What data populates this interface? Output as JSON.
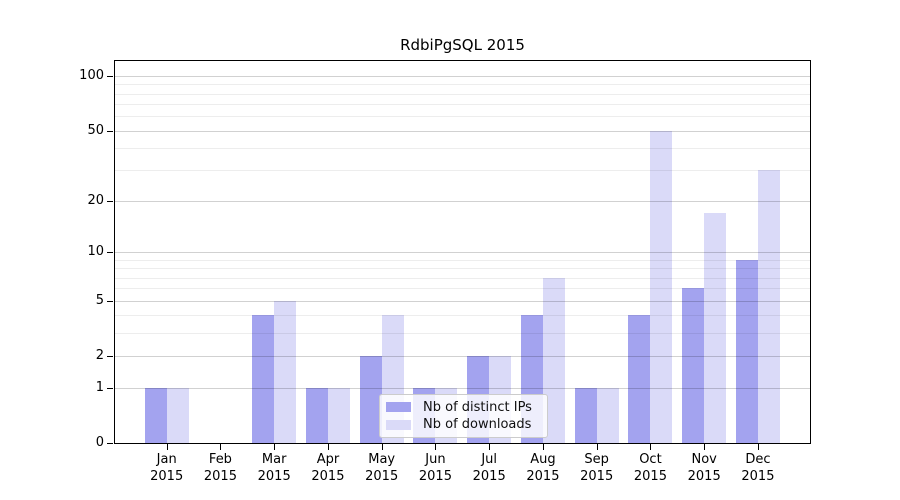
{
  "title": "RdbiPgSQL 2015",
  "chart_data": {
    "type": "bar",
    "categories": [
      "Jan",
      "Feb",
      "Mar",
      "Apr",
      "May",
      "Jun",
      "Jul",
      "Aug",
      "Sep",
      "Oct",
      "Nov",
      "Dec"
    ],
    "category_year": "2015",
    "series": [
      {
        "name": "Nb of distinct IPs",
        "color": "#a3a3ef",
        "values": [
          1,
          0,
          4,
          1,
          2,
          1,
          2,
          4,
          1,
          4,
          6,
          9
        ]
      },
      {
        "name": "Nb of downloads",
        "color": "#dadaf8",
        "values": [
          1,
          0,
          5,
          1,
          4,
          1,
          2,
          7,
          1,
          50,
          17,
          30
        ]
      }
    ],
    "title": "RdbiPgSQL 2015",
    "xlabel": "",
    "ylabel": "",
    "yscale": "log10(1+v)",
    "ylim": [
      0,
      123
    ],
    "major_yticks": [
      0,
      1,
      2,
      5,
      10,
      20,
      50,
      100
    ],
    "minor_yticks": [
      3,
      4,
      6,
      7,
      8,
      9,
      30,
      40,
      60,
      70,
      80,
      90
    ],
    "grid": true,
    "legend_position": "lower center"
  }
}
